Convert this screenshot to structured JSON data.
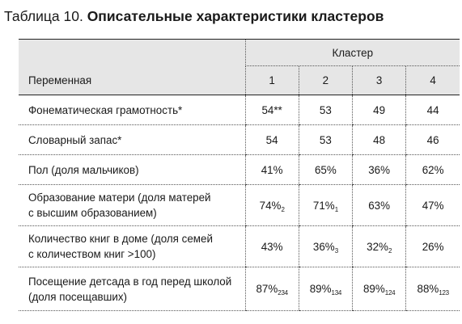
{
  "title": {
    "prefix": "Таблица 10.",
    "text": "Описательные характеристики кластеров"
  },
  "header": {
    "variable": "Переменная",
    "cluster": "Кластер",
    "clusters": [
      "1",
      "2",
      "3",
      "4"
    ]
  },
  "rows": [
    {
      "label": [
        "Фонематическая грамотность*"
      ],
      "cells": [
        {
          "v": "54**",
          "s": ""
        },
        {
          "v": "53",
          "s": ""
        },
        {
          "v": "49",
          "s": ""
        },
        {
          "v": "44",
          "s": ""
        }
      ]
    },
    {
      "label": [
        "Словарный запас*"
      ],
      "cells": [
        {
          "v": "54",
          "s": ""
        },
        {
          "v": "53",
          "s": ""
        },
        {
          "v": "48",
          "s": ""
        },
        {
          "v": "46",
          "s": ""
        }
      ]
    },
    {
      "label": [
        "Пол (доля мальчиков)"
      ],
      "cells": [
        {
          "v": "41%",
          "s": ""
        },
        {
          "v": "65%",
          "s": ""
        },
        {
          "v": "36%",
          "s": ""
        },
        {
          "v": "62%",
          "s": ""
        }
      ]
    },
    {
      "label": [
        "Образование матери (доля матерей",
        "с высшим образованием)"
      ],
      "cells": [
        {
          "v": "74%",
          "s": "2"
        },
        {
          "v": "71%",
          "s": "1"
        },
        {
          "v": "63%",
          "s": ""
        },
        {
          "v": "47%",
          "s": ""
        }
      ]
    },
    {
      "label": [
        "Количество книг в доме (доля семей",
        "с количеством книг >100)"
      ],
      "cells": [
        {
          "v": "43%",
          "s": ""
        },
        {
          "v": "36%",
          "s": "3"
        },
        {
          "v": "32%",
          "s": "2"
        },
        {
          "v": "26%",
          "s": ""
        }
      ]
    },
    {
      "label": [
        "Посещение детсада в год перед школой",
        "(доля посещавших)"
      ],
      "cells": [
        {
          "v": "87%",
          "s": "234"
        },
        {
          "v": "89%",
          "s": "134"
        },
        {
          "v": "89%",
          "s": "124"
        },
        {
          "v": "88%",
          "s": "123"
        }
      ]
    }
  ]
}
